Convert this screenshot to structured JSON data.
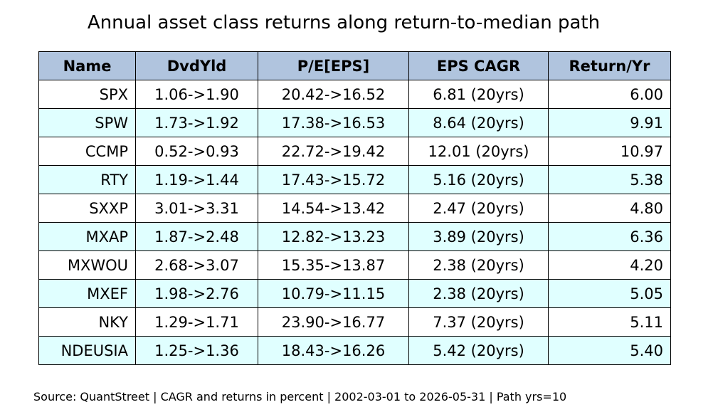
{
  "chart_data": {
    "type": "table",
    "title": "Annual asset class returns along return-to-median path",
    "columns": [
      "Name",
      "DvdYld",
      "P/E[EPS]",
      "EPS CAGR",
      "Return/Yr"
    ],
    "rows": [
      [
        "SPX",
        "1.06->1.90",
        "20.42->16.52",
        "6.81 (20yrs)",
        "6.00"
      ],
      [
        "SPW",
        "1.73->1.92",
        "17.38->16.53",
        "8.64 (20yrs)",
        "9.91"
      ],
      [
        "CCMP",
        "0.52->0.93",
        "22.72->19.42",
        "12.01 (20yrs)",
        "10.97"
      ],
      [
        "RTY",
        "1.19->1.44",
        "17.43->15.72",
        "5.16 (20yrs)",
        "5.38"
      ],
      [
        "SXXP",
        "3.01->3.31",
        "14.54->13.42",
        "2.47 (20yrs)",
        "4.80"
      ],
      [
        "MXAP",
        "1.87->2.48",
        "12.82->13.23",
        "3.89 (20yrs)",
        "6.36"
      ],
      [
        "MXWOU",
        "2.68->3.07",
        "15.35->13.87",
        "2.38 (20yrs)",
        "4.20"
      ],
      [
        "MXEF",
        "1.98->2.76",
        "10.79->11.15",
        "2.38 (20yrs)",
        "5.05"
      ],
      [
        "NKY",
        "1.29->1.71",
        "23.90->16.77",
        "7.37 (20yrs)",
        "5.11"
      ],
      [
        "NDEUSIA",
        "1.25->1.36",
        "18.43->16.26",
        "5.42 (20yrs)",
        "5.40"
      ]
    ],
    "footnote": "Source: QuantStreet | CAGR and returns in percent | 2002-03-01 to 2026-05-31 | Path yrs=10",
    "colors": {
      "header_background": "#b0c4de",
      "alternate_row_background": "#e0ffff",
      "row_background": "#ffffff",
      "border": "#000000"
    }
  }
}
